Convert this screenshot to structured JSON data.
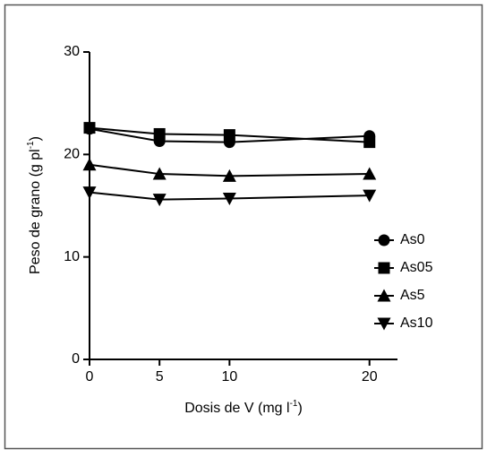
{
  "chart_data": {
    "type": "line",
    "xlabel": [
      "Dosis de V (mg l",
      "-1",
      ")"
    ],
    "ylabel": [
      "Peso de grano (g pl",
      "-1",
      ")"
    ],
    "x": [
      0,
      5,
      10,
      20
    ],
    "xlim": [
      0,
      22
    ],
    "xticks": [
      0,
      5,
      10,
      20
    ],
    "ylim": [
      0,
      30
    ],
    "yticks": [
      0,
      10,
      20,
      30
    ],
    "legend": "right",
    "series": [
      {
        "name": "As0",
        "color": "#000000",
        "marker": "circle",
        "values": [
          22.5,
          21.3,
          21.2,
          21.8
        ]
      },
      {
        "name": "As05",
        "color": "#000000",
        "marker": "square",
        "values": [
          22.6,
          22.0,
          21.9,
          21.2
        ]
      },
      {
        "name": "As5",
        "color": "#000000",
        "marker": "triangle-up",
        "values": [
          19.0,
          18.1,
          17.9,
          18.1
        ]
      },
      {
        "name": "As10",
        "color": "#000000",
        "marker": "triangle-down",
        "values": [
          16.3,
          15.6,
          15.7,
          16.0
        ]
      }
    ]
  }
}
